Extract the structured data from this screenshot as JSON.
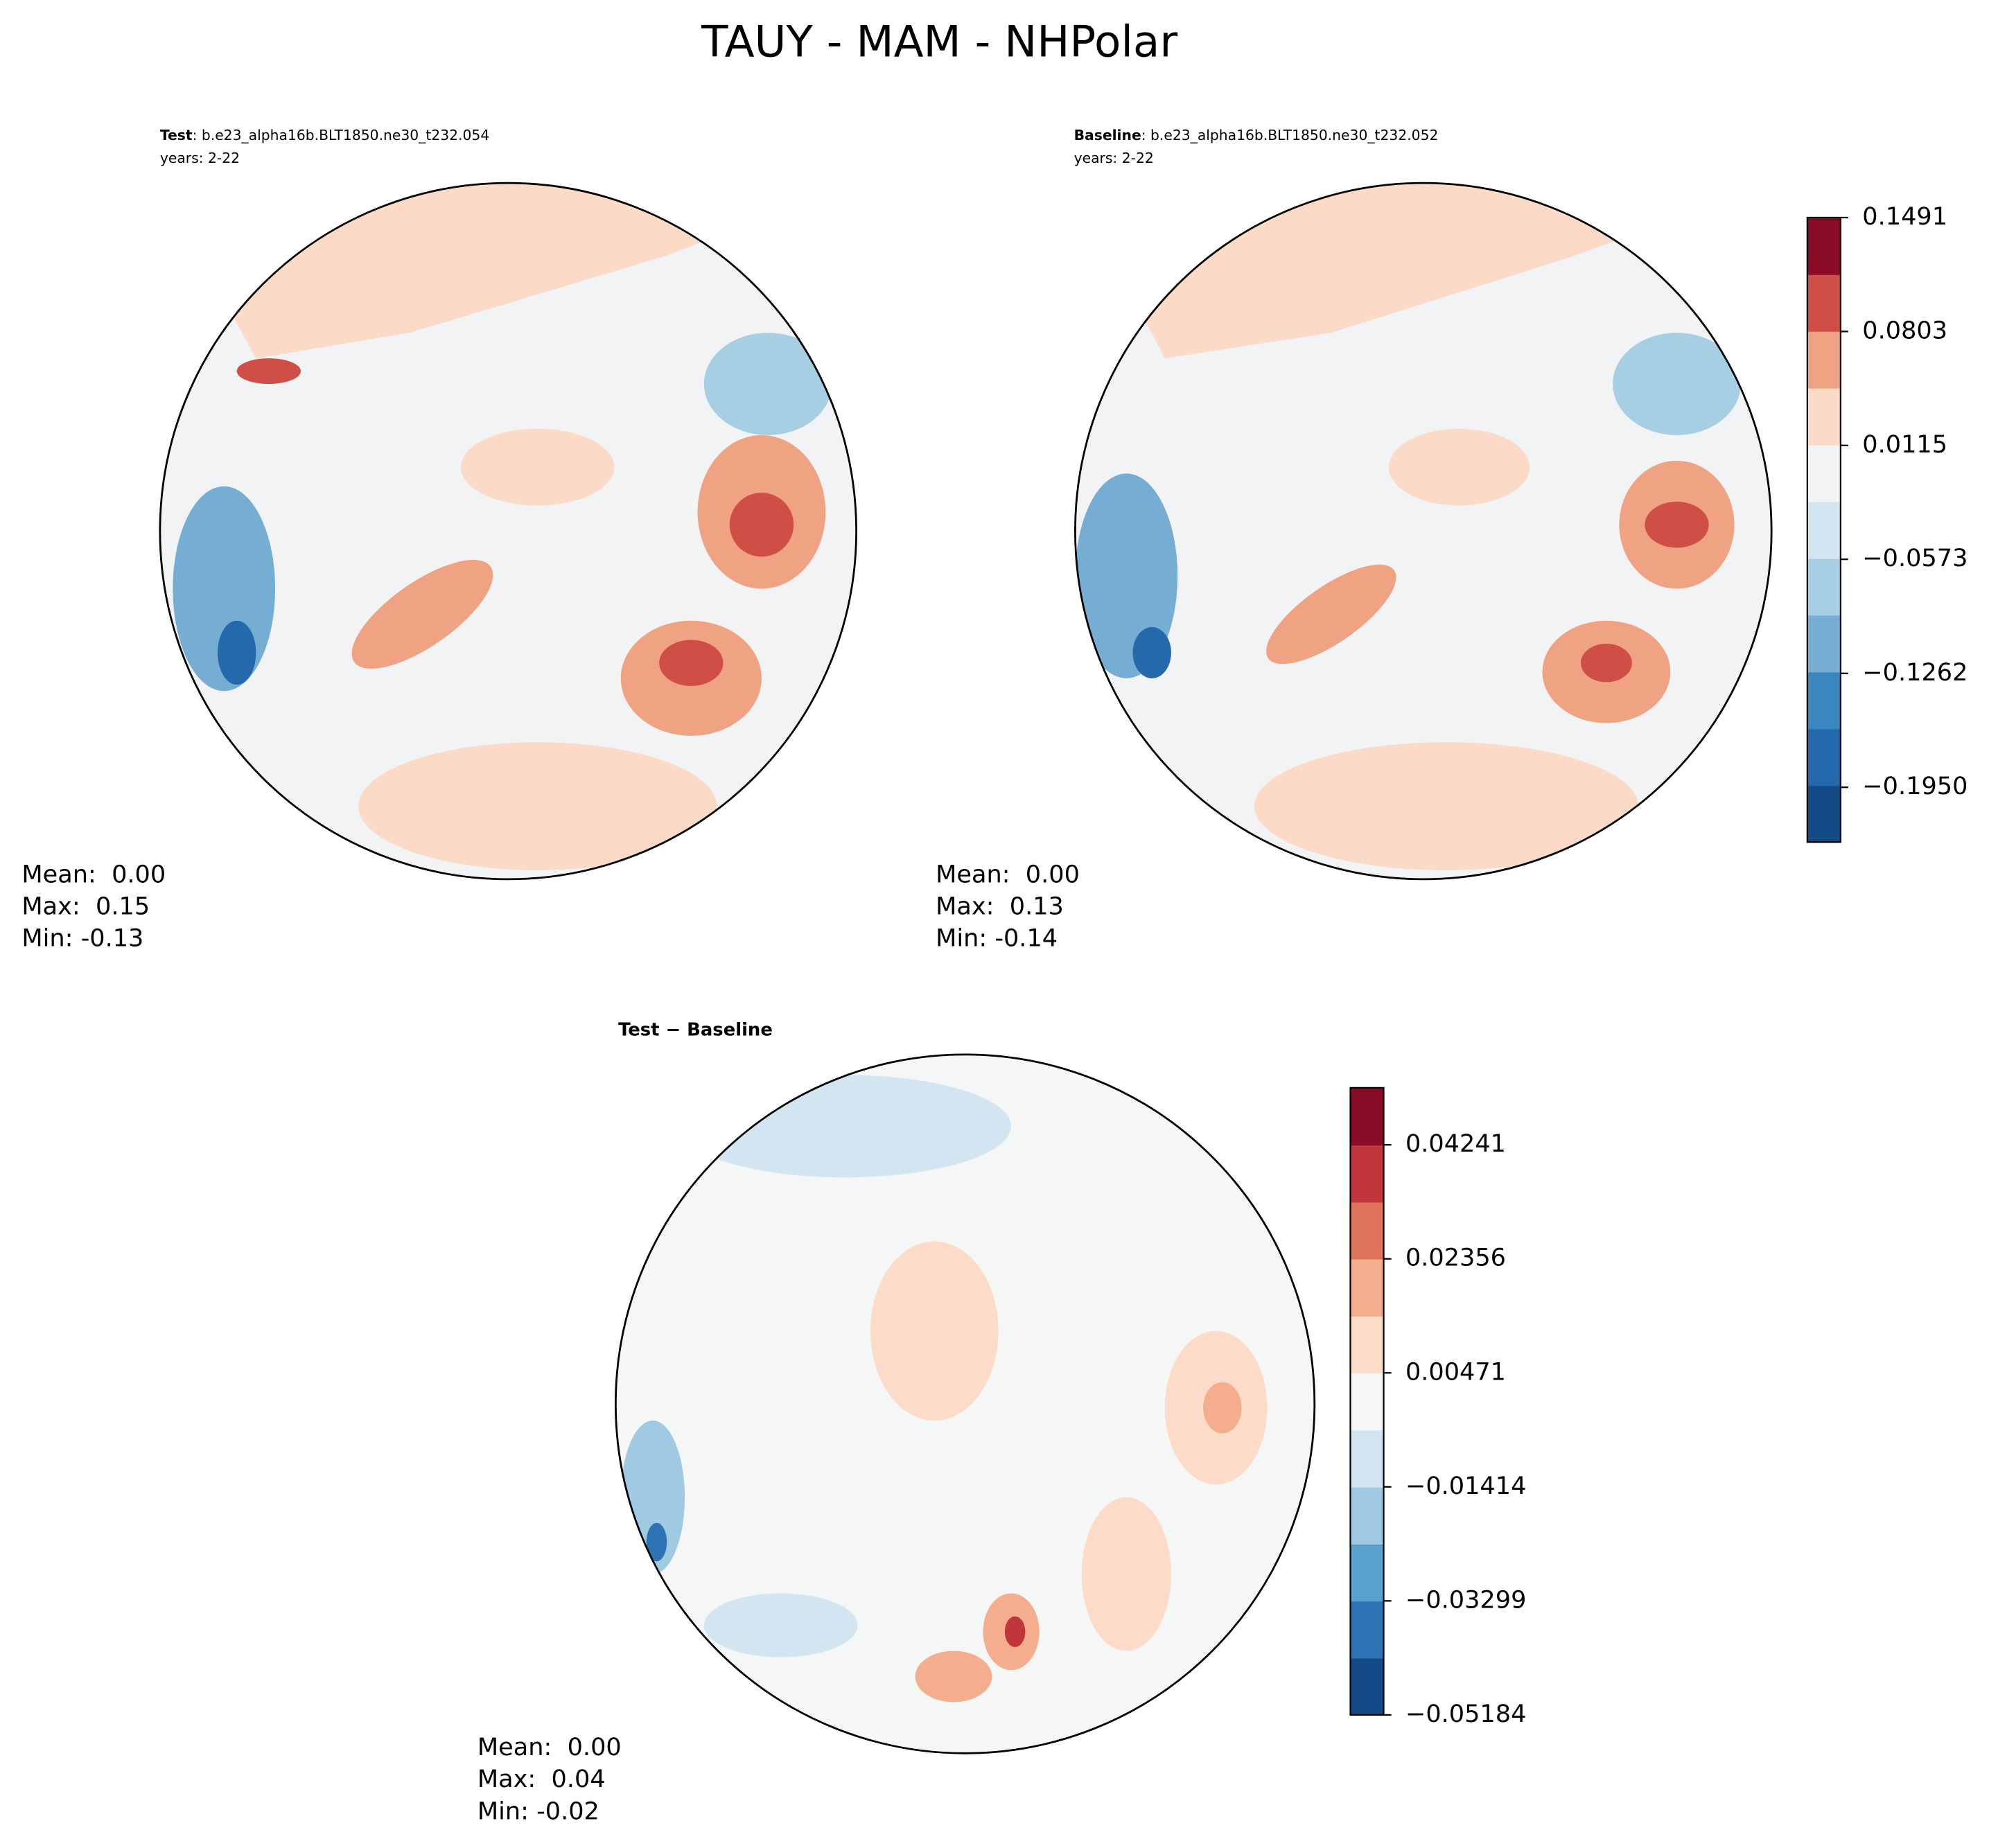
{
  "title": "TAUY - MAM - NHPolar",
  "panels": [
    {
      "label": "Test",
      "case": ": b.e23_alpha16b.BLT1850.ne30_t232.054",
      "years": "years: 2-22",
      "stats": [
        "Mean:  0.00",
        "Max:  0.15",
        "Min: -0.13"
      ]
    },
    {
      "label": "Baseline",
      "case": ": b.e23_alpha16b.BLT1850.ne30_t232.052",
      "years": "years: 2-22",
      "stats": [
        "Mean:  0.00",
        "Max:  0.13",
        "Min: -0.14"
      ]
    },
    {
      "label": "Test − Baseline",
      "stats": [
        "Mean:  0.00",
        "Max:  0.04",
        "Min: -0.02"
      ]
    }
  ],
  "colorbars": [
    {
      "ylim": [
        -0.2281,
        0.1491
      ],
      "yticks": [
        {
          "value": -0.195,
          "label": "−0.1950"
        },
        {
          "value": -0.1262,
          "label": "−0.1262"
        },
        {
          "value": -0.0573,
          "label": "−0.0573"
        },
        0.0115,
        0.0803,
        0.1491
      ],
      "colors": [
        "#134b87",
        "#2469ac",
        "#3a86bf",
        "#76aed3",
        "#a7cfe4",
        "#d3e5f0",
        "#f1f3f4",
        "#fbdac7",
        "#f0a383",
        "#cf4f47",
        "#8a0b25"
      ]
    },
    {
      "ylim": [
        -0.05184,
        0.05184
      ],
      "yticks": [
        {
          "value": -0.05184,
          "label": "−0.05184"
        },
        {
          "value": -0.03299,
          "label": "−0.03299"
        },
        {
          "value": -0.01414,
          "label": "−0.01414"
        },
        0.00471,
        0.02356,
        0.04241
      ],
      "colors": [
        "#134b87",
        "#2d72b2",
        "#5aa0cd",
        "#9fcae1",
        "#d3e5f0",
        "#f5f6f6",
        "#fcdcc9",
        "#f5ae8d",
        "#dd7358",
        "#c1363a",
        "#8a0b25"
      ]
    }
  ]
}
